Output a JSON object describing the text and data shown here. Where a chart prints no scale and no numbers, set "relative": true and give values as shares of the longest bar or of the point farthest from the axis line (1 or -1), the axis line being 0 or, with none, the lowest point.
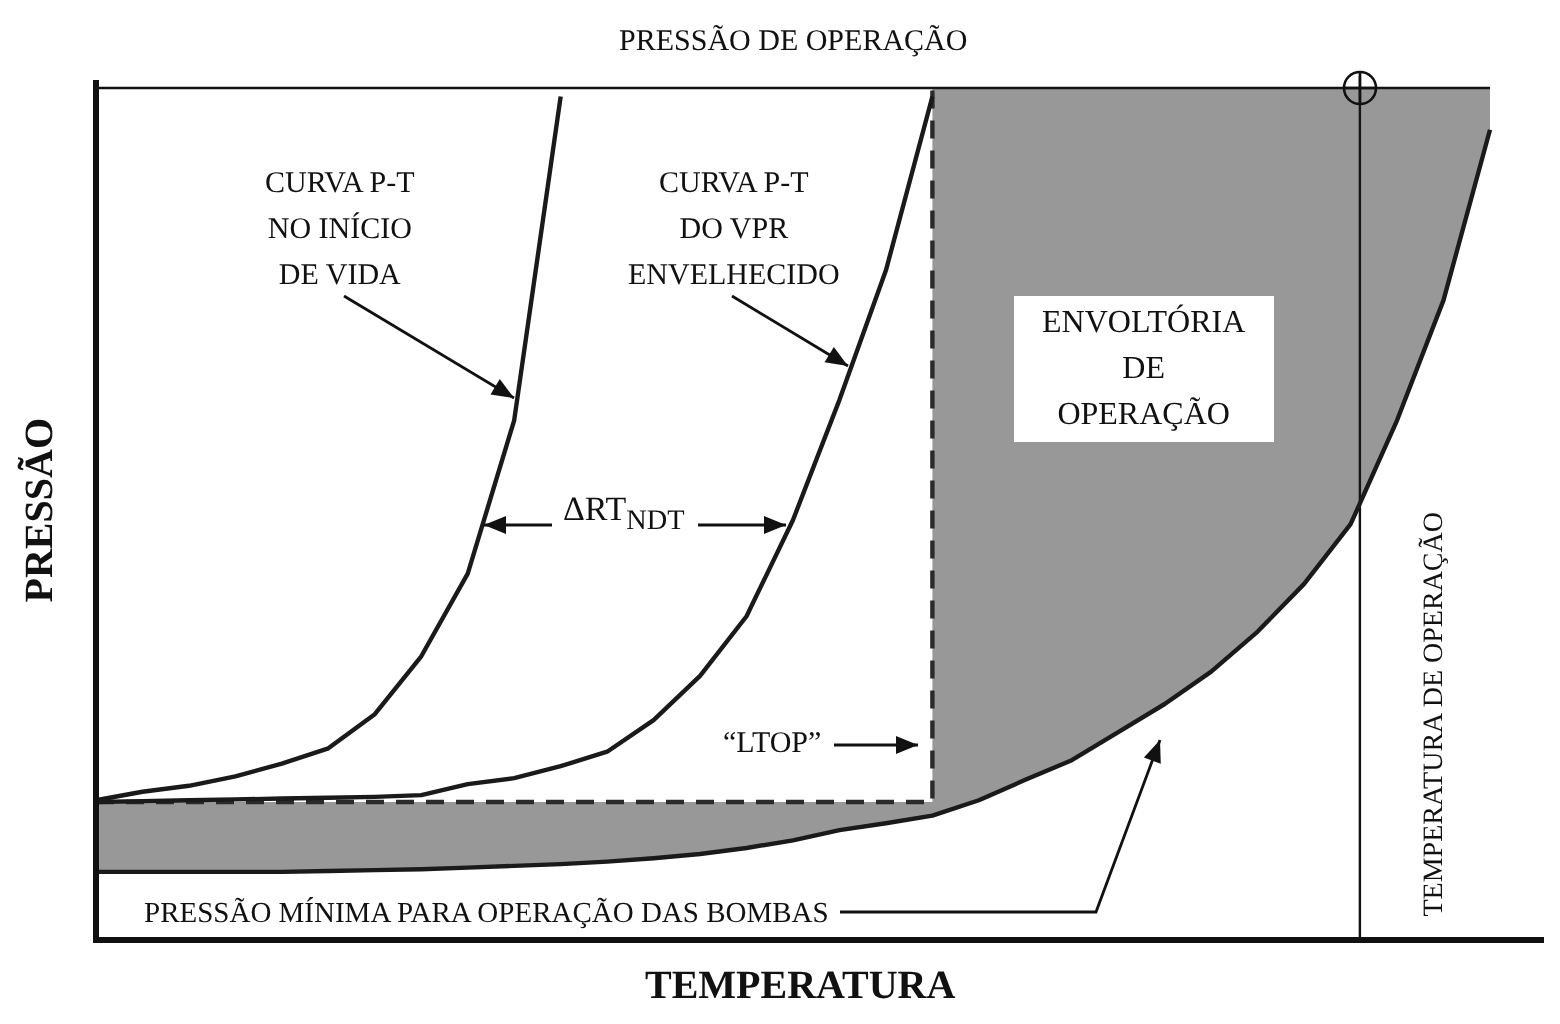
{
  "chart_data": {
    "type": "line",
    "relative": true,
    "xlabel": "TEMPERATURA",
    "ylabel": "PRESSÃO",
    "categories": [
      null,
      null,
      null,
      null,
      null,
      null,
      null,
      null,
      null,
      null,
      null,
      null,
      null,
      null,
      null,
      null,
      null,
      null,
      null,
      null,
      null,
      null,
      null,
      null,
      null,
      null,
      null,
      null,
      null,
      null,
      null
    ],
    "series": [
      {
        "type": "line",
        "color": "#1a1a1a",
        "values": [
          0.164,
          0.174,
          0.181,
          0.192,
          0.207,
          0.225,
          0.265,
          0.333,
          0.43,
          0.61,
          0.99,
          null,
          null,
          null,
          null,
          null,
          null,
          null,
          null,
          null,
          null,
          null,
          null,
          null,
          null,
          null,
          null,
          null,
          null,
          null,
          null
        ]
      },
      {
        "type": "line",
        "color": "#1a1a1a",
        "values": [
          0.162,
          0.163,
          0.164,
          0.165,
          0.166,
          0.167,
          0.168,
          0.17,
          0.183,
          0.19,
          0.204,
          0.221,
          0.258,
          0.31,
          0.38,
          0.493,
          0.634,
          0.786,
          0.99,
          null,
          null,
          null,
          null,
          null,
          null,
          null,
          null,
          null,
          null,
          null,
          null
        ]
      },
      {
        "type": "line",
        "color": "#1a1a1a",
        "values": [
          0.08,
          0.08,
          0.08,
          0.08,
          0.08,
          0.081,
          0.082,
          0.083,
          0.085,
          0.087,
          0.089,
          0.092,
          0.096,
          0.101,
          0.108,
          0.117,
          0.129,
          0.137,
          0.146,
          0.164,
          0.188,
          0.211,
          0.244,
          0.277,
          0.315,
          0.362,
          0.418,
          0.488,
          0.61,
          0.751,
          0.951
        ],
        "lower": [
          0.08,
          0.08,
          0.08,
          0.08,
          0.08,
          0.081,
          0.082,
          0.083,
          0.085,
          0.087,
          0.089,
          0.092,
          0.096,
          0.101,
          0.108,
          0.117,
          0.129,
          0.137,
          0.146,
          0.164,
          0.188,
          0.211,
          0.244,
          0.277,
          0.315,
          0.362,
          0.418,
          0.488,
          0.61,
          0.751,
          0.951
        ],
        "upper": [
          0.162,
          0.162,
          0.162,
          0.162,
          0.162,
          0.162,
          0.162,
          0.162,
          0.162,
          0.162,
          0.162,
          0.162,
          0.162,
          0.162,
          0.162,
          0.162,
          0.162,
          0.162,
          1,
          1,
          1,
          1,
          1,
          1,
          1,
          1,
          1,
          1,
          1,
          1,
          1
        ]
      },
      {
        "type": "step",
        "color": "#2a2a2a",
        "line_style": "dashed",
        "values": [
          0.162,
          0.162,
          0.162,
          0.162,
          0.162,
          0.162,
          0.162,
          0.162,
          0.162,
          0.162,
          0.162,
          0.162,
          0.162,
          0.162,
          0.162,
          0.162,
          0.162,
          0.162,
          1,
          null,
          null,
          null,
          null,
          null,
          null,
          null,
          null,
          null,
          null,
          null,
          null
        ]
      }
    ],
    "ref_lines": [
      {
        "axis": "y",
        "value": 1,
        "label": "PRESSÃO DE OPERAÇÃO"
      }
    ],
    "annotations": [
      "CURVA P-T\nNO INÍCIO\nDE VIDA",
      "CURVA P-T\nDO VPR\nENVELHECIDO",
      "ENVOLTÓRIA\nDE\nOPERAÇÃO",
      "ΔRT$_{NDT}$",
      "“LTOP”",
      "PRESSÃO MÍNIMA PARA OPERAÇÃO DAS BOMBAS",
      "TEMPERATURA DE OPERAÇÃO"
    ]
  }
}
